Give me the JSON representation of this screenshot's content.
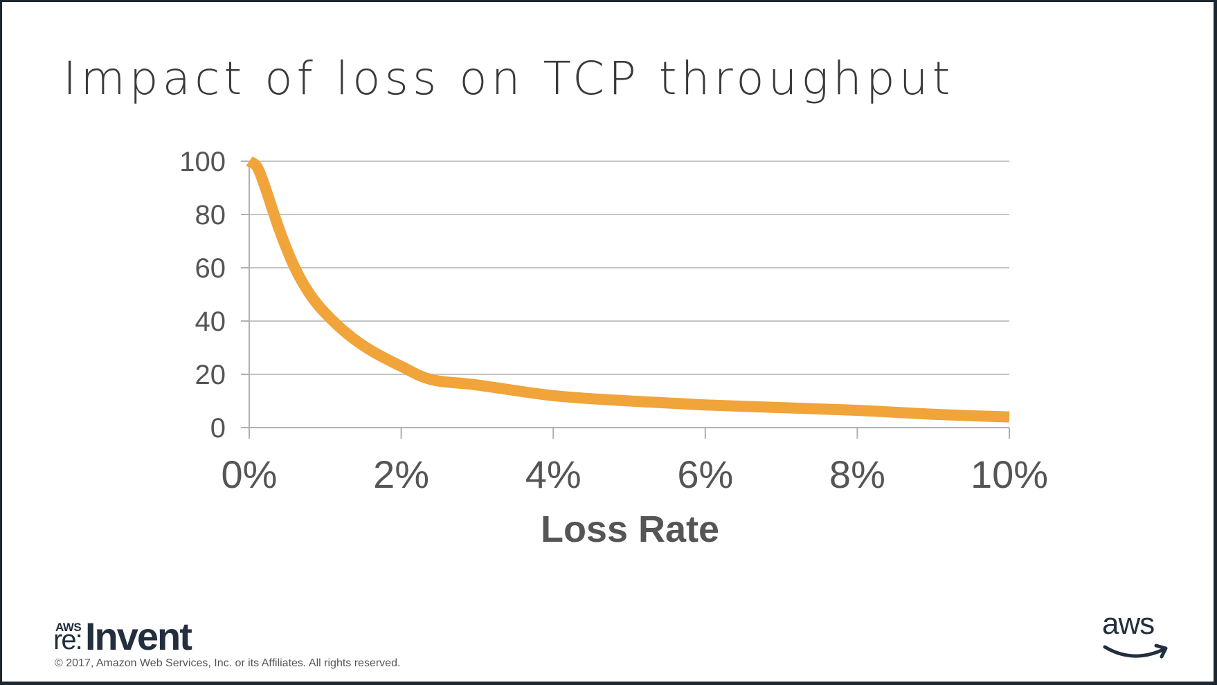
{
  "slide": {
    "title": "Impact of loss on TCP throughput",
    "copyright": "© 2017, Amazon Web Services, Inc. or its Affiliates. All rights reserved.",
    "event_logo": {
      "aws": "AWS",
      "re": "re:",
      "invent": "Invent"
    },
    "brand_logo": "aws"
  },
  "chart_data": {
    "type": "line",
    "title": "",
    "xlabel": "Loss Rate",
    "ylabel": "",
    "x_ticks": [
      "0%",
      "2%",
      "4%",
      "6%",
      "8%",
      "10%"
    ],
    "y_ticks": [
      "0",
      "20",
      "40",
      "60",
      "80",
      "100"
    ],
    "xlim": [
      0,
      10
    ],
    "ylim": [
      0,
      100
    ],
    "grid": true,
    "series": [
      {
        "color": "#f0a43a",
        "x": [
          0,
          0.1,
          0.2,
          0.4,
          0.6,
          0.8,
          1.0,
          1.3,
          1.6,
          2.0,
          2.4,
          3.0,
          4.0,
          5.0,
          6.0,
          7.0,
          8.0,
          9.0,
          10.0
        ],
        "y": [
          100,
          98,
          91,
          74,
          60,
          50,
          43,
          35,
          29,
          23,
          18,
          16,
          12,
          10,
          8.5,
          7.5,
          6.5,
          5,
          4
        ]
      }
    ]
  }
}
